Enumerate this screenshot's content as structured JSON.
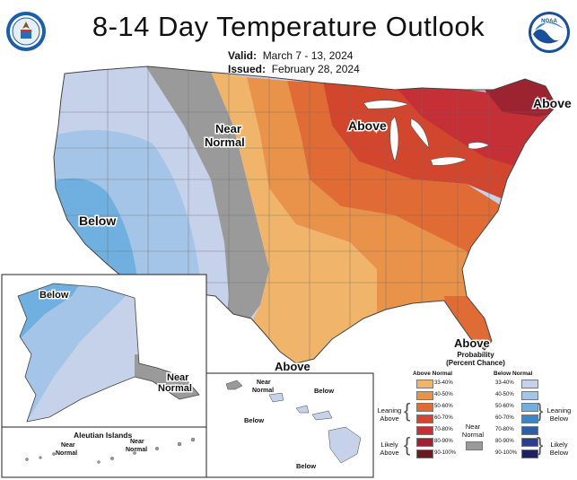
{
  "title": "8-14 Day Temperature Outlook",
  "valid_label": "Valid:",
  "valid_dates": "March 7 - 13, 2024",
  "issued_label": "Issued:",
  "issued_date": "February 28, 2024",
  "map_labels": {
    "above_northeast": "Above",
    "above_great_lakes": "Above",
    "near_normal_west_1": "Near",
    "near_normal_west_2": "Normal",
    "below_west": "Below",
    "above_florida": "Above",
    "above_texas": "Above",
    "alaska_below": "Below",
    "alaska_near_1": "Near",
    "alaska_near_2": "Normal",
    "aleutian_title": "Aleutian Islands",
    "aleutian_near_a1": "Near",
    "aleutian_near_a2": "Normal",
    "aleutian_near_b1": "Near",
    "aleutian_near_b2": "Normal",
    "hawaii_near_1": "Near",
    "hawaii_near_2": "Normal",
    "hawaii_below_1": "Below",
    "hawaii_below_2": "Below",
    "hawaii_below_3": "Below"
  },
  "legend": {
    "title_1": "Probability",
    "title_2": "(Percent Chance)",
    "above_header": "Above Normal",
    "below_header": "Below Normal",
    "leaning_above_1": "Leaning",
    "leaning_above_2": "Above",
    "likely_above_1": "Likely",
    "likely_above_2": "Above",
    "near_normal_1": "Near",
    "near_normal_2": "Normal",
    "leaning_below_1": "Leaning",
    "leaning_below_2": "Below",
    "likely_below_1": "Likely",
    "likely_below_2": "Below",
    "above_classes": [
      {
        "range": "33-40%",
        "color": "#f0b56a"
      },
      {
        "range": "40-50%",
        "color": "#e9924a"
      },
      {
        "range": "50-60%",
        "color": "#e06b34"
      },
      {
        "range": "60-70%",
        "color": "#d3462e"
      },
      {
        "range": "70-80%",
        "color": "#c52f36"
      },
      {
        "range": "80-90%",
        "color": "#9c2430"
      },
      {
        "range": "90-100%",
        "color": "#701820"
      }
    ],
    "below_classes": [
      {
        "range": "33-40%",
        "color": "#c6d1ea"
      },
      {
        "range": "40-50%",
        "color": "#a4c5e8"
      },
      {
        "range": "50-60%",
        "color": "#6fb0e0"
      },
      {
        "range": "60-70%",
        "color": "#3b86c8"
      },
      {
        "range": "70-80%",
        "color": "#2c5ea5"
      },
      {
        "range": "80-90%",
        "color": "#2a3f86"
      },
      {
        "range": "90-100%",
        "color": "#1e1f5e"
      }
    ],
    "near_normal_color": "#9a9a9a"
  },
  "logos": {
    "left": "commerce-seal",
    "right": "noaa-logo",
    "noaa_text": "NOAA"
  }
}
